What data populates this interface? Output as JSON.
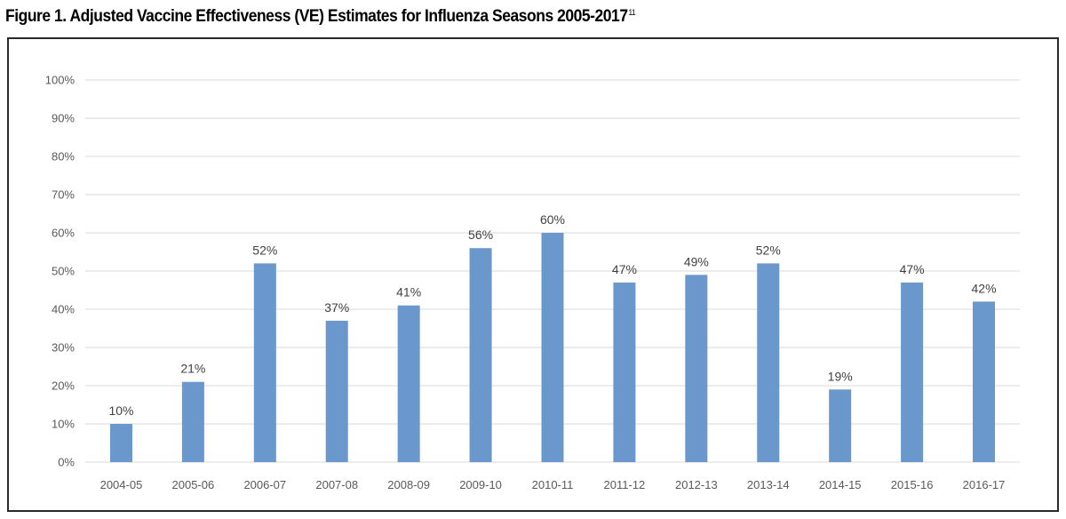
{
  "figure": {
    "title": "Figure 1. Adjusted Vaccine Effectiveness (VE) Estimates for Influenza Seasons 2005-2017",
    "title_superscript": "11"
  },
  "colors": {
    "bar": "#6A97CC",
    "gridline": "#D9D9D9",
    "axis_text": "#595959",
    "label_text": "#404040"
  },
  "chart_data": {
    "type": "bar",
    "title": "Adjusted Vaccine Effectiveness (VE) Estimates for Influenza Seasons 2005-2017",
    "xlabel": "",
    "ylabel": "",
    "ylim": [
      0,
      100
    ],
    "y_ticks": [
      0,
      10,
      20,
      30,
      40,
      50,
      60,
      70,
      80,
      90,
      100
    ],
    "y_tick_labels": [
      "0%",
      "10%",
      "20%",
      "30%",
      "40%",
      "50%",
      "60%",
      "70%",
      "80%",
      "90%",
      "100%"
    ],
    "grid": true,
    "legend": "none",
    "categories": [
      "2004-05",
      "2005-06",
      "2006-07",
      "2007-08",
      "2008-09",
      "2009-10",
      "2010-11",
      "2011-12",
      "2012-13",
      "2013-14",
      "2014-15",
      "2015-16",
      "2016-17"
    ],
    "values": [
      10,
      21,
      52,
      37,
      41,
      56,
      60,
      47,
      49,
      52,
      19,
      47,
      42
    ],
    "data_labels": [
      "10%",
      "21%",
      "52%",
      "37%",
      "41%",
      "56%",
      "60%",
      "47%",
      "49%",
      "52%",
      "19%",
      "47%",
      "42%"
    ]
  }
}
